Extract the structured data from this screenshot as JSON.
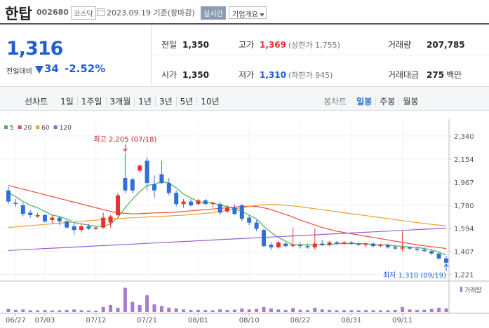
{
  "header": {
    "name": "한탑",
    "code": "002680",
    "market": "코스닥",
    "date": "2023.09.19 기준(장마감)",
    "realtime": "실시간",
    "company_info": "기업개요"
  },
  "quote": {
    "price": "1,316",
    "change_label": "전일대비",
    "change": "34",
    "change_rate": "-2.52%",
    "fields": [
      {
        "label": "전일",
        "value": "1,350"
      },
      {
        "label": "고가",
        "value": "1,369",
        "note": "(상한가 1,755)"
      },
      {
        "label": "거래량",
        "value": "207,785"
      },
      {
        "label": "시가",
        "value": "1,350"
      },
      {
        "label": "저가",
        "value": "1,310",
        "note": "(하한가 945)"
      },
      {
        "label": "거래대금",
        "value": "275",
        "unit": "백만"
      }
    ]
  },
  "tabs": {
    "line_label": "선차트",
    "line": [
      "1일",
      "1주일",
      "3개월",
      "1년",
      "3년",
      "5년",
      "10년"
    ],
    "candle_label": "봉차트",
    "candle": [
      "일봉",
      "주봉",
      "월봉"
    ],
    "active": "일봉"
  },
  "chart_data": {
    "type": "candlestick",
    "categories": [
      null,
      "06/27",
      null,
      null,
      null,
      "07/03",
      null,
      null,
      null,
      null,
      null,
      null,
      "07/12",
      null,
      null,
      null,
      null,
      null,
      null,
      "07/21",
      null,
      null,
      null,
      null,
      null,
      null,
      "08/01",
      null,
      null,
      null,
      null,
      null,
      null,
      "08/10",
      null,
      null,
      null,
      null,
      null,
      null,
      "08/22",
      null,
      null,
      null,
      null,
      null,
      null,
      "08/31",
      null,
      null,
      null,
      null,
      null,
      null,
      "09/11",
      null,
      null,
      null,
      null,
      null,
      null
    ],
    "open": [
      1900,
      1800,
      1780,
      1720,
      1690,
      1700,
      1660,
      1680,
      1650,
      1610,
      1580,
      1610,
      1590,
      1600,
      1640,
      1700,
      2000,
      1990,
      2060,
      2140,
      1950,
      2030,
      1960,
      1880,
      1790,
      1810,
      1790,
      1820,
      1790,
      1790,
      1730,
      1760,
      1780,
      1680,
      1640,
      1580,
      1460,
      1440,
      1470,
      1450,
      1460,
      1450,
      1440,
      1470,
      1460,
      1480,
      1470,
      1480,
      1470,
      1460,
      1470,
      1450,
      1460,
      1440,
      1430,
      1440,
      1430,
      1420,
      1410,
      1390,
      1350
    ],
    "high": [
      1930,
      1830,
      1800,
      1740,
      1720,
      1710,
      1700,
      1690,
      1660,
      1640,
      1630,
      1630,
      1610,
      1720,
      1700,
      1880,
      2205,
      2000,
      2110,
      2170,
      2020,
      2140,
      2000,
      1900,
      1830,
      1830,
      1830,
      1830,
      1810,
      1810,
      1780,
      1790,
      1790,
      1700,
      1660,
      1590,
      1480,
      1490,
      1480,
      1600,
      1480,
      1470,
      1590,
      1500,
      1490,
      1490,
      1490,
      1490,
      1480,
      1480,
      1480,
      1470,
      1470,
      1460,
      1570,
      1450,
      1440,
      1440,
      1420,
      1400,
      1369
    ],
    "low": [
      1790,
      1770,
      1690,
      1680,
      1680,
      1640,
      1630,
      1620,
      1590,
      1540,
      1560,
      1580,
      1580,
      1590,
      1600,
      1690,
      1880,
      1880,
      2040,
      1900,
      1840,
      1950,
      1860,
      1770,
      1760,
      1770,
      1780,
      1780,
      1760,
      1700,
      1720,
      1700,
      1650,
      1620,
      1570,
      1440,
      1420,
      1430,
      1440,
      1440,
      1430,
      1430,
      1420,
      1450,
      1450,
      1460,
      1460,
      1460,
      1450,
      1440,
      1440,
      1440,
      1430,
      1420,
      1410,
      1420,
      1410,
      1400,
      1380,
      1340,
      1310
    ],
    "close": [
      1810,
      1790,
      1710,
      1700,
      1700,
      1650,
      1680,
      1650,
      1600,
      1580,
      1610,
      1590,
      1600,
      1680,
      1690,
      1860,
      1900,
      1900,
      2100,
      1960,
      1900,
      1960,
      1880,
      1790,
      1810,
      1780,
      1820,
      1790,
      1800,
      1720,
      1760,
      1710,
      1670,
      1640,
      1590,
      1450,
      1440,
      1480,
      1450,
      1460,
      1450,
      1440,
      1470,
      1460,
      1480,
      1470,
      1480,
      1470,
      1460,
      1470,
      1450,
      1460,
      1440,
      1430,
      1440,
      1430,
      1420,
      1410,
      1390,
      1350,
      1316
    ],
    "up_color": "#e8322d",
    "down_color": "#2f6fd6",
    "ylim": [
      1190,
      2380
    ],
    "yticks": [
      {
        "value": 1221,
        "label": "1,221"
      },
      {
        "value": 1407,
        "label": "1,407"
      },
      {
        "value": 1594,
        "label": "1,594"
      },
      {
        "value": 1780,
        "label": "1,780"
      },
      {
        "value": 1967,
        "label": "1,967"
      },
      {
        "value": 2154,
        "label": "2,154"
      },
      {
        "value": 2340,
        "label": "2,340"
      }
    ],
    "grid": true,
    "moving_averages": [
      {
        "name": "5",
        "color": "#4caf50",
        "values": [
          1880,
          1850,
          1810,
          1780,
          1760,
          1730,
          1700,
          1690,
          1670,
          1640,
          1630,
          1620,
          1610,
          1610,
          1630,
          1680,
          1760,
          1830,
          1890,
          1940,
          1950,
          1970,
          1960,
          1920,
          1870,
          1840,
          1810,
          1800,
          1800,
          1780,
          1770,
          1750,
          1730,
          1700,
          1670,
          1610,
          1560,
          1520,
          1490,
          1460,
          1460,
          1460,
          1460,
          1460,
          1460,
          1470,
          1470,
          1470,
          1470,
          1470,
          1460,
          1460,
          1460,
          1450,
          1450,
          1440,
          1440,
          1430,
          1420,
          1400,
          1380
        ]
      },
      {
        "name": "20",
        "color": "#e74c3c",
        "values": [
          1940,
          1925,
          1910,
          1895,
          1880,
          1865,
          1850,
          1835,
          1820,
          1805,
          1790,
          1775,
          1760,
          1745,
          1730,
          1720,
          1715,
          1710,
          1712,
          1715,
          1718,
          1720,
          1722,
          1725,
          1730,
          1735,
          1740,
          1745,
          1750,
          1755,
          1760,
          1765,
          1770,
          1772,
          1770,
          1760,
          1745,
          1725,
          1705,
          1685,
          1660,
          1640,
          1620,
          1600,
          1585,
          1570,
          1560,
          1550,
          1540,
          1530,
          1520,
          1510,
          1500,
          1490,
          1480,
          1470,
          1460,
          1452,
          1445,
          1438,
          1430
        ]
      },
      {
        "name": "60",
        "color": "#f0a030",
        "values": [
          1600,
          1605,
          1610,
          1615,
          1620,
          1625,
          1630,
          1635,
          1640,
          1645,
          1650,
          1655,
          1660,
          1665,
          1670,
          1673,
          1676,
          1679,
          1682,
          1685,
          1688,
          1691,
          1694,
          1697,
          1700,
          1705,
          1710,
          1715,
          1720,
          1730,
          1740,
          1750,
          1760,
          1770,
          1780,
          1785,
          1788,
          1785,
          1780,
          1775,
          1768,
          1760,
          1752,
          1744,
          1736,
          1728,
          1720,
          1712,
          1704,
          1696,
          1688,
          1680,
          1672,
          1664,
          1656,
          1648,
          1640,
          1633,
          1626,
          1620,
          1614
        ]
      },
      {
        "name": "120",
        "color": "#9b5fd0",
        "values": [
          1415,
          1418,
          1421,
          1424,
          1427,
          1430,
          1433,
          1436,
          1439,
          1442,
          1445,
          1448,
          1451,
          1454,
          1457,
          1460,
          1463,
          1466,
          1469,
          1472,
          1475,
          1478,
          1481,
          1484,
          1487,
          1490,
          1493,
          1496,
          1499,
          1502,
          1505,
          1508,
          1511,
          1514,
          1517,
          1520,
          1523,
          1526,
          1529,
          1532,
          1535,
          1538,
          1541,
          1544,
          1547,
          1550,
          1553,
          1556,
          1559,
          1562,
          1565,
          1568,
          1571,
          1574,
          1577,
          1580,
          1583,
          1586,
          1589,
          1592,
          1595
        ]
      }
    ],
    "volume": {
      "name": "거래량",
      "color": "#a77bd0",
      "ylim": [
        0,
        1600000
      ],
      "values": [
        180000,
        120000,
        150000,
        100000,
        90000,
        110000,
        80000,
        90000,
        120000,
        150000,
        100000,
        80000,
        70000,
        300000,
        420000,
        250000,
        1450000,
        600000,
        420000,
        1000000,
        450000,
        350000,
        250000,
        200000,
        150000,
        120000,
        130000,
        110000,
        100000,
        150000,
        120000,
        140000,
        200000,
        150000,
        180000,
        300000,
        200000,
        150000,
        120000,
        220000,
        130000,
        110000,
        250000,
        150000,
        120000,
        100000,
        110000,
        100000,
        90000,
        110000,
        100000,
        90000,
        100000,
        120000,
        300000,
        150000,
        120000,
        130000,
        180000,
        250000,
        207785
      ]
    },
    "annotations": [
      {
        "label": "최고 2,205 (07/18)",
        "value": 2205,
        "kind": "high"
      },
      {
        "label": "최저 1,310 (09/19)",
        "value": 1310,
        "kind": "low"
      }
    ]
  }
}
